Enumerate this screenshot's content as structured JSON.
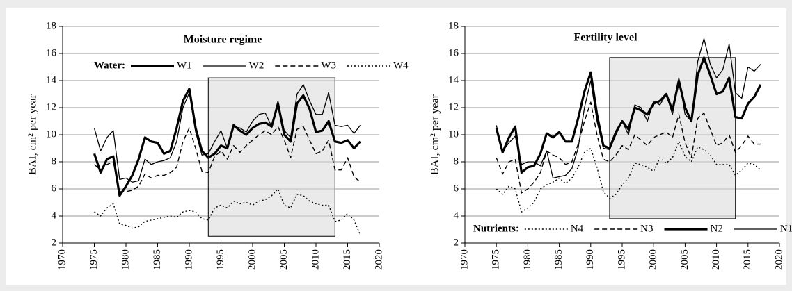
{
  "chart_data": [
    {
      "type": "line",
      "title": "Moisture regime",
      "ylabel": "BAI, cm² per year",
      "legend": "top",
      "legend_title": "Water:",
      "xlim": [
        1970,
        2020
      ],
      "xticks": [
        1970,
        1975,
        1980,
        1985,
        1990,
        1995,
        2000,
        2005,
        2010,
        2015,
        2020
      ],
      "ylim": [
        2,
        18
      ],
      "yticks": [
        2,
        4,
        6,
        8,
        10,
        12,
        14,
        16,
        18
      ],
      "grid": true,
      "highlight": {
        "x": [
          1993,
          2013
        ],
        "y": [
          2.5,
          14.2
        ]
      },
      "x": [
        1975,
        1976,
        1977,
        1978,
        1979,
        1980,
        1981,
        1982,
        1983,
        1984,
        1985,
        1986,
        1987,
        1988,
        1989,
        1990,
        1991,
        1992,
        1993,
        1994,
        1995,
        1996,
        1997,
        1998,
        1999,
        2000,
        2001,
        2002,
        2003,
        2004,
        2005,
        2006,
        2007,
        2008,
        2009,
        2010,
        2011,
        2012,
        2013,
        2014,
        2015,
        2016,
        2017
      ],
      "series": [
        {
          "name": "W1",
          "color": "#000000",
          "style": "thick",
          "values": [
            8.6,
            7.2,
            8.2,
            8.4,
            5.5,
            6.2,
            7.0,
            8.2,
            9.8,
            9.5,
            9.4,
            8.6,
            8.8,
            10.5,
            12.5,
            13.4,
            10.5,
            8.8,
            8.3,
            8.6,
            9.2,
            9.0,
            10.7,
            10.3,
            10.0,
            10.5,
            10.8,
            10.9,
            10.6,
            12.3,
            10.0,
            9.5,
            12.3,
            12.9,
            11.9,
            10.2,
            10.3,
            11.0,
            9.5,
            9.4,
            9.6,
            9.0,
            9.5
          ]
        },
        {
          "name": "W2",
          "color": "#000000",
          "style": "thin",
          "values": [
            10.5,
            8.8,
            9.8,
            10.3,
            6.7,
            6.8,
            6.5,
            6.6,
            8.2,
            7.8,
            8.0,
            8.1,
            8.3,
            9.5,
            12.0,
            13.1,
            10.2,
            8.5,
            8.6,
            9.5,
            10.3,
            9.0,
            10.6,
            10.5,
            10.2,
            11.0,
            11.5,
            11.6,
            10.6,
            12.5,
            10.3,
            9.8,
            13.0,
            13.7,
            12.5,
            11.5,
            11.5,
            13.1,
            10.7,
            10.6,
            10.7,
            10.1,
            10.7
          ]
        },
        {
          "name": "W3",
          "color": "#000000",
          "style": "dashed",
          "values": [
            7.8,
            7.4,
            7.8,
            8.0,
            5.8,
            5.8,
            5.9,
            6.2,
            7.1,
            6.8,
            7.0,
            7.0,
            7.2,
            7.6,
            9.5,
            10.5,
            9.0,
            7.3,
            7.2,
            8.4,
            8.8,
            8.2,
            9.2,
            8.7,
            9.2,
            9.6,
            10.0,
            10.3,
            10.0,
            10.6,
            9.6,
            8.3,
            10.4,
            10.6,
            9.6,
            8.6,
            8.8,
            9.6,
            7.4,
            7.4,
            8.3,
            6.9,
            6.5
          ]
        },
        {
          "name": "W4",
          "color": "#000000",
          "style": "dotted",
          "values": [
            4.3,
            4.0,
            4.6,
            4.9,
            3.4,
            3.3,
            3.1,
            3.2,
            3.6,
            3.7,
            3.8,
            3.9,
            4.0,
            3.9,
            4.3,
            4.4,
            4.3,
            3.8,
            3.7,
            4.6,
            4.8,
            4.6,
            5.1,
            4.9,
            5.0,
            4.8,
            5.1,
            5.2,
            5.5,
            6.0,
            4.8,
            4.6,
            5.6,
            5.5,
            5.1,
            4.9,
            4.8,
            4.8,
            3.6,
            3.7,
            4.2,
            3.7,
            2.6
          ]
        }
      ]
    },
    {
      "type": "line",
      "title": "Fertility level",
      "ylabel": "BAI, cm² per year",
      "legend": "bottom",
      "legend_title": "Nutrients:",
      "xlim": [
        1970,
        2020
      ],
      "xticks": [
        1970,
        1975,
        1980,
        1985,
        1990,
        1995,
        2000,
        2005,
        2010,
        2015,
        2020
      ],
      "ylim": [
        2,
        18
      ],
      "yticks": [
        2,
        4,
        6,
        8,
        10,
        12,
        14,
        16,
        18
      ],
      "grid": true,
      "highlight": {
        "x": [
          1993,
          2013
        ],
        "y": [
          3.8,
          15.7
        ]
      },
      "x": [
        1975,
        1976,
        1977,
        1978,
        1979,
        1980,
        1981,
        1982,
        1983,
        1984,
        1985,
        1986,
        1987,
        1988,
        1989,
        1990,
        1991,
        1992,
        1993,
        1994,
        1995,
        1996,
        1997,
        1998,
        1999,
        2000,
        2001,
        2002,
        2003,
        2004,
        2005,
        2006,
        2007,
        2008,
        2009,
        2010,
        2011,
        2012,
        2013,
        2014,
        2015,
        2016,
        2017
      ],
      "series": [
        {
          "name": "N4",
          "color": "#000000",
          "style": "dotted",
          "values": [
            6.0,
            5.6,
            6.2,
            6.0,
            4.3,
            4.6,
            5.0,
            6.0,
            6.3,
            6.5,
            6.8,
            6.4,
            6.8,
            7.6,
            8.7,
            9.0,
            7.6,
            5.8,
            5.3,
            5.6,
            6.3,
            6.8,
            7.9,
            7.8,
            7.6,
            7.3,
            8.3,
            7.9,
            8.3,
            9.5,
            8.4,
            8.0,
            9.1,
            8.9,
            8.5,
            7.8,
            7.8,
            7.8,
            7.0,
            7.4,
            7.9,
            7.8,
            7.4
          ]
        },
        {
          "name": "N3",
          "color": "#000000",
          "style": "dashed",
          "values": [
            8.3,
            7.1,
            8.0,
            8.2,
            5.7,
            6.0,
            6.5,
            7.2,
            8.8,
            8.5,
            8.3,
            7.8,
            8.0,
            9.3,
            11.0,
            12.4,
            10.0,
            8.2,
            8.0,
            8.5,
            9.2,
            8.9,
            10.0,
            9.6,
            9.2,
            9.8,
            10.0,
            10.2,
            9.8,
            11.5,
            9.4,
            8.3,
            11.2,
            11.6,
            10.4,
            9.2,
            9.4,
            10.0,
            8.7,
            9.2,
            9.9,
            9.3,
            9.3
          ]
        },
        {
          "name": "N2",
          "color": "#000000",
          "style": "thick",
          "values": [
            10.5,
            8.7,
            9.8,
            10.6,
            7.2,
            7.6,
            7.7,
            8.6,
            10.1,
            9.8,
            10.2,
            9.5,
            9.5,
            11.2,
            13.2,
            14.6,
            11.5,
            9.2,
            9.0,
            10.2,
            11.0,
            10.4,
            12.0,
            11.8,
            11.5,
            12.3,
            12.5,
            13.0,
            11.8,
            14.0,
            12.0,
            11.0,
            14.4,
            15.7,
            14.4,
            13.0,
            13.2,
            14.2,
            11.3,
            11.2,
            12.3,
            12.8,
            13.7
          ]
        },
        {
          "name": "N1",
          "color": "#000000",
          "style": "thin",
          "values": [
            10.7,
            8.8,
            9.4,
            9.9,
            7.8,
            8.0,
            8.0,
            7.7,
            8.8,
            6.8,
            6.9,
            7.0,
            7.5,
            9.0,
            12.0,
            14.0,
            11.0,
            9.0,
            8.9,
            10.0,
            11.0,
            10.0,
            12.2,
            12.0,
            11.0,
            12.5,
            12.2,
            13.0,
            11.5,
            14.2,
            11.5,
            11.0,
            15.4,
            17.1,
            15.2,
            14.2,
            14.8,
            16.7,
            13.1,
            12.7,
            15.0,
            14.7,
            15.2
          ]
        }
      ]
    }
  ]
}
